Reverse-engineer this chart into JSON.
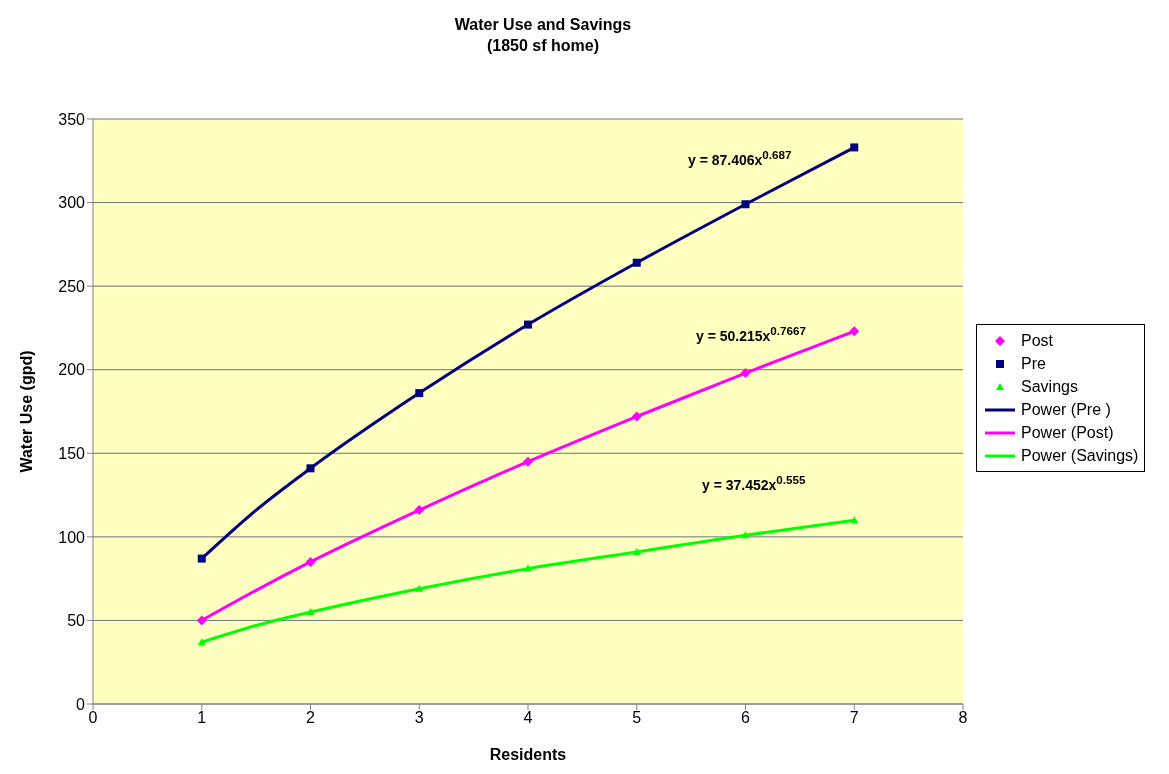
{
  "chart_data": {
    "type": "scatter",
    "title": "Water Use and Savings",
    "subtitle": "(1850 sf home)",
    "xlabel": "Residents",
    "ylabel": "Water Use (gpd)",
    "xlim": [
      0,
      8
    ],
    "xticks": [
      0,
      1,
      2,
      3,
      4,
      5,
      6,
      7,
      8
    ],
    "ylim": [
      0,
      350
    ],
    "yticks": [
      0,
      50,
      100,
      150,
      200,
      250,
      300,
      350
    ],
    "grid": "y",
    "legend": "right",
    "series": [
      {
        "name": "Post",
        "marker": "diamond",
        "color": "#ff00ff",
        "x": [
          1,
          2,
          3,
          4,
          5,
          6,
          7
        ],
        "values": [
          50,
          85,
          116,
          145,
          172,
          198,
          223
        ]
      },
      {
        "name": "Pre",
        "marker": "square",
        "color": "#000080",
        "x": [
          1,
          2,
          3,
          4,
          5,
          6,
          7
        ],
        "values": [
          87,
          141,
          186,
          227,
          264,
          299,
          333
        ]
      },
      {
        "name": "Savings",
        "marker": "triangle",
        "color": "#00ff00",
        "x": [
          1,
          2,
          3,
          4,
          5,
          6,
          7
        ],
        "values": [
          37,
          55,
          69,
          81,
          91,
          101,
          110
        ]
      },
      {
        "name": "Power (Pre )",
        "type": "line",
        "marker": "none",
        "color": "#000080",
        "x": [
          1,
          1.5,
          2,
          3,
          4,
          5,
          6,
          7
        ],
        "values": [
          87,
          116,
          141,
          186,
          227,
          264,
          299,
          333
        ]
      },
      {
        "name": "Power (Post)",
        "type": "line",
        "marker": "none",
        "color": "#ff00ff",
        "x": [
          1,
          1.5,
          2,
          3,
          4,
          5,
          6,
          7
        ],
        "values": [
          50,
          68,
          85,
          116,
          145,
          172,
          198,
          223
        ]
      },
      {
        "name": "Power (Savings)",
        "type": "line",
        "marker": "none",
        "color": "#00ff00",
        "x": [
          1,
          1.5,
          2,
          3,
          4,
          5,
          6,
          7
        ],
        "values": [
          37,
          47,
          55,
          69,
          81,
          91,
          101,
          110
        ]
      }
    ],
    "annotations": [
      "y = 87.406x$^{0.687}$",
      "y = 50.215x$^{0.7667}$",
      "y = 37.452x$^{0.555}$"
    ]
  }
}
